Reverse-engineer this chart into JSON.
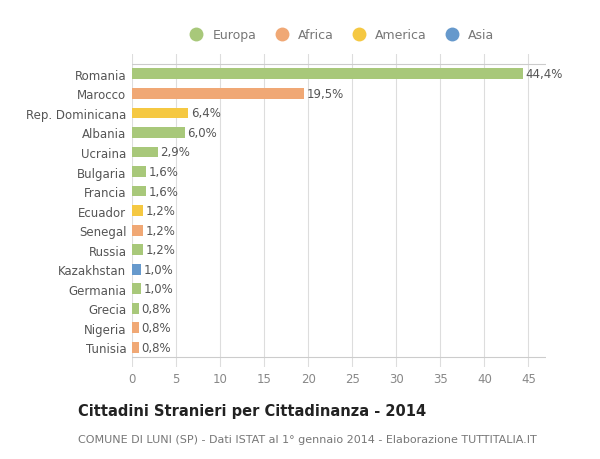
{
  "countries": [
    "Romania",
    "Marocco",
    "Rep. Dominicana",
    "Albania",
    "Ucraina",
    "Bulgaria",
    "Francia",
    "Ecuador",
    "Senegal",
    "Russia",
    "Kazakhstan",
    "Germania",
    "Grecia",
    "Nigeria",
    "Tunisia"
  ],
  "values": [
    44.4,
    19.5,
    6.4,
    6.0,
    2.9,
    1.6,
    1.6,
    1.2,
    1.2,
    1.2,
    1.0,
    1.0,
    0.8,
    0.8,
    0.8
  ],
  "labels": [
    "44,4%",
    "19,5%",
    "6,4%",
    "6,0%",
    "2,9%",
    "1,6%",
    "1,6%",
    "1,2%",
    "1,2%",
    "1,2%",
    "1,0%",
    "1,0%",
    "0,8%",
    "0,8%",
    "0,8%"
  ],
  "colors": [
    "#a8c87a",
    "#f0a875",
    "#f5c842",
    "#a8c87a",
    "#a8c87a",
    "#a8c87a",
    "#a8c87a",
    "#f5c842",
    "#f0a875",
    "#a8c87a",
    "#6699cc",
    "#a8c87a",
    "#a8c87a",
    "#f0a875",
    "#f0a875"
  ],
  "legend_labels": [
    "Europa",
    "Africa",
    "America",
    "Asia"
  ],
  "legend_colors": [
    "#a8c87a",
    "#f0a875",
    "#f5c842",
    "#6699cc"
  ],
  "title": "Cittadini Stranieri per Cittadinanza - 2014",
  "subtitle": "COMUNE DI LUNI (SP) - Dati ISTAT al 1° gennaio 2014 - Elaborazione TUTTITALIA.IT",
  "xlim": [
    0,
    47
  ],
  "xticks": [
    0,
    5,
    10,
    15,
    20,
    25,
    30,
    35,
    40,
    45
  ],
  "background_color": "#ffffff",
  "grid_color": "#dddddd",
  "bar_height": 0.55,
  "label_fontsize": 8.5,
  "tick_fontsize": 8.5,
  "title_fontsize": 10.5,
  "subtitle_fontsize": 8.0
}
